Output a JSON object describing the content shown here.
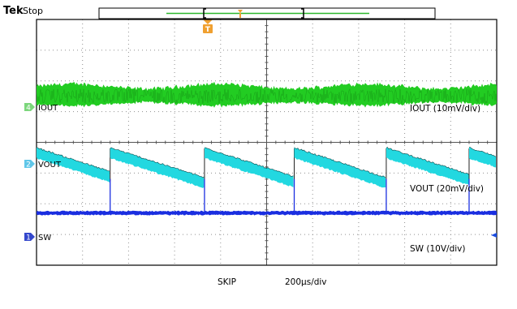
{
  "header": {
    "brand": "Tek",
    "run_state": "Stop",
    "trigger_marker": "T"
  },
  "channels": [
    {
      "number": "4",
      "name": "IOUT",
      "scale_label": "IOUT (10mV/div)",
      "color": "#22cc22",
      "marker_color": "#7bd67b"
    },
    {
      "number": "2",
      "name": "VOUT",
      "scale_label": "VOUT (20mV/div)",
      "color": "#22d8e0",
      "marker_color": "#5fc6e8"
    },
    {
      "number": "1",
      "name": "SW",
      "scale_label": "SW (10V/div)",
      "color": "#1a2ee0",
      "marker_color": "#3347cc"
    }
  ],
  "footer": {
    "mode": "SKIP",
    "timebase": "200µs/div"
  },
  "colors": {
    "grid": "#909090",
    "frame": "#000000",
    "trigger": "#f0a030",
    "record_bar": "#2db82d"
  },
  "chart_data": {
    "type": "line",
    "x_unit": "div",
    "x_range": [
      0,
      10
    ],
    "grid_divisions": {
      "x": 10,
      "y": 8
    },
    "series": [
      {
        "name": "IOUT",
        "shape": "noise band",
        "level_div": 2.5
      },
      {
        "name": "VOUT",
        "shape": "sawtooth",
        "ramp_start_div": [
          0,
          1.6,
          3.65,
          5.6,
          7.6,
          9.4
        ],
        "ramp_end_div": [
          1.6,
          3.65,
          5.6,
          7.6,
          9.4,
          10
        ]
      },
      {
        "name": "SW",
        "shape": "baseline with pulses",
        "pulse_div": [
          1.6,
          3.65,
          5.6,
          7.6,
          9.4
        ]
      }
    ]
  }
}
